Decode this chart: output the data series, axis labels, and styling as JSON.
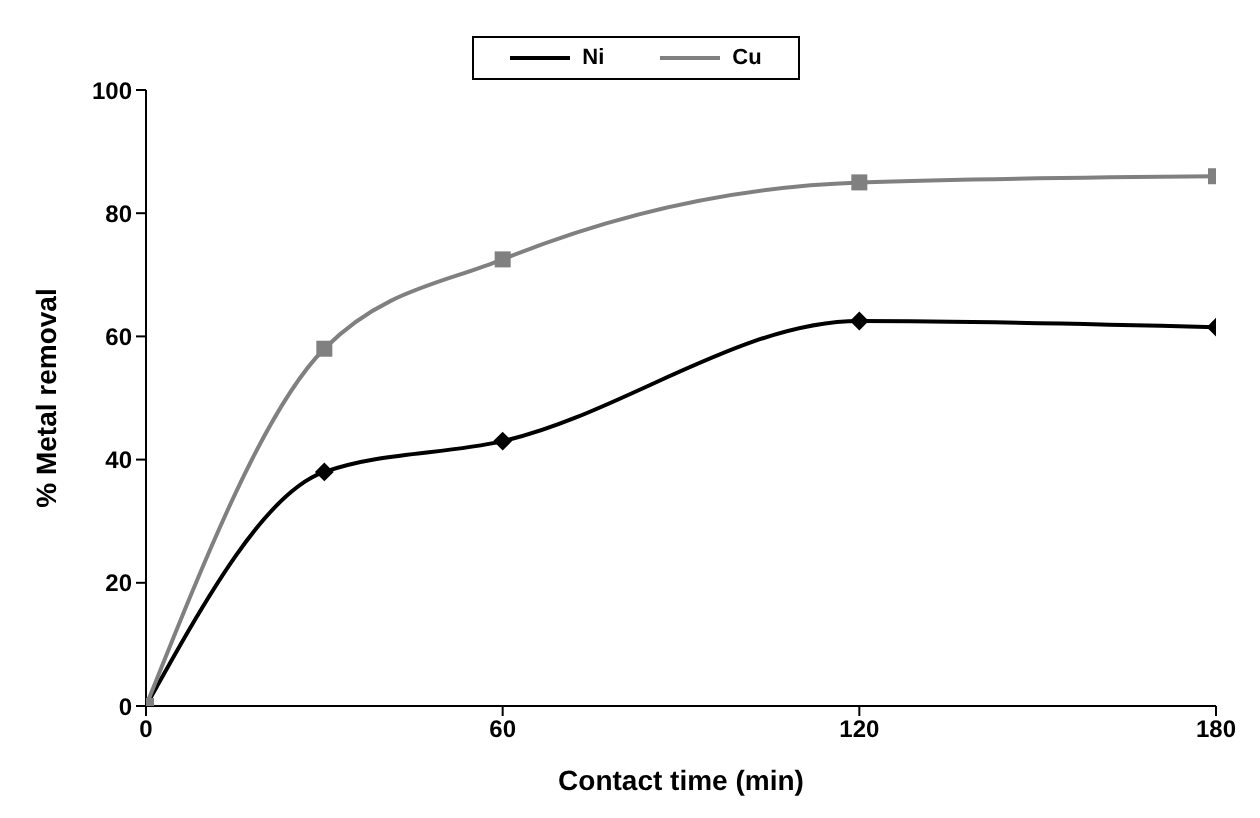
{
  "chart_data": {
    "type": "line",
    "xlabel": "Contact time  (min)",
    "ylabel": "% Metal removal",
    "x": [
      0,
      30,
      60,
      120,
      180
    ],
    "series": [
      {
        "name": "Ni",
        "color": "#000000",
        "marker": "diamond",
        "values": [
          0,
          38,
          43,
          62.5,
          61.5
        ]
      },
      {
        "name": "Cu",
        "color": "#808080",
        "marker": "square",
        "values": [
          0,
          58,
          72.5,
          85,
          86
        ]
      }
    ],
    "xlim": [
      0,
      180
    ],
    "xticks": [
      0,
      60,
      120,
      180
    ],
    "ylim": [
      0,
      100
    ],
    "yticks": [
      0,
      20,
      40,
      60,
      80,
      100
    ],
    "legend": "top",
    "line_style": "solid"
  }
}
